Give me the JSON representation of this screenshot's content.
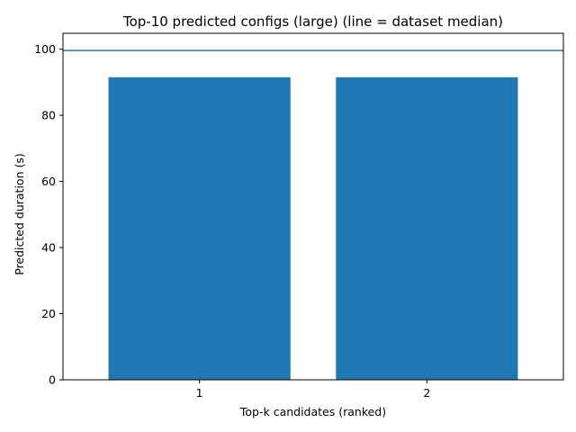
{
  "chart_data": {
    "type": "bar",
    "title": "Top-10 predicted configs (large) (line = dataset median)",
    "xlabel": "Top-k candidates (ranked)",
    "ylabel": "Predicted duration (s)",
    "categories": [
      "1",
      "2"
    ],
    "values": [
      91.5,
      91.5
    ],
    "ylim": [
      0,
      104.8
    ],
    "yticks": [
      0,
      20,
      40,
      60,
      80,
      100
    ],
    "reference_line": {
      "label": "dataset median",
      "value": 99.6
    },
    "grid": false,
    "legend": "none",
    "colors": {
      "bar": "#1f77b4",
      "reference_line": "#1f77b4",
      "axis": "#000000"
    }
  }
}
